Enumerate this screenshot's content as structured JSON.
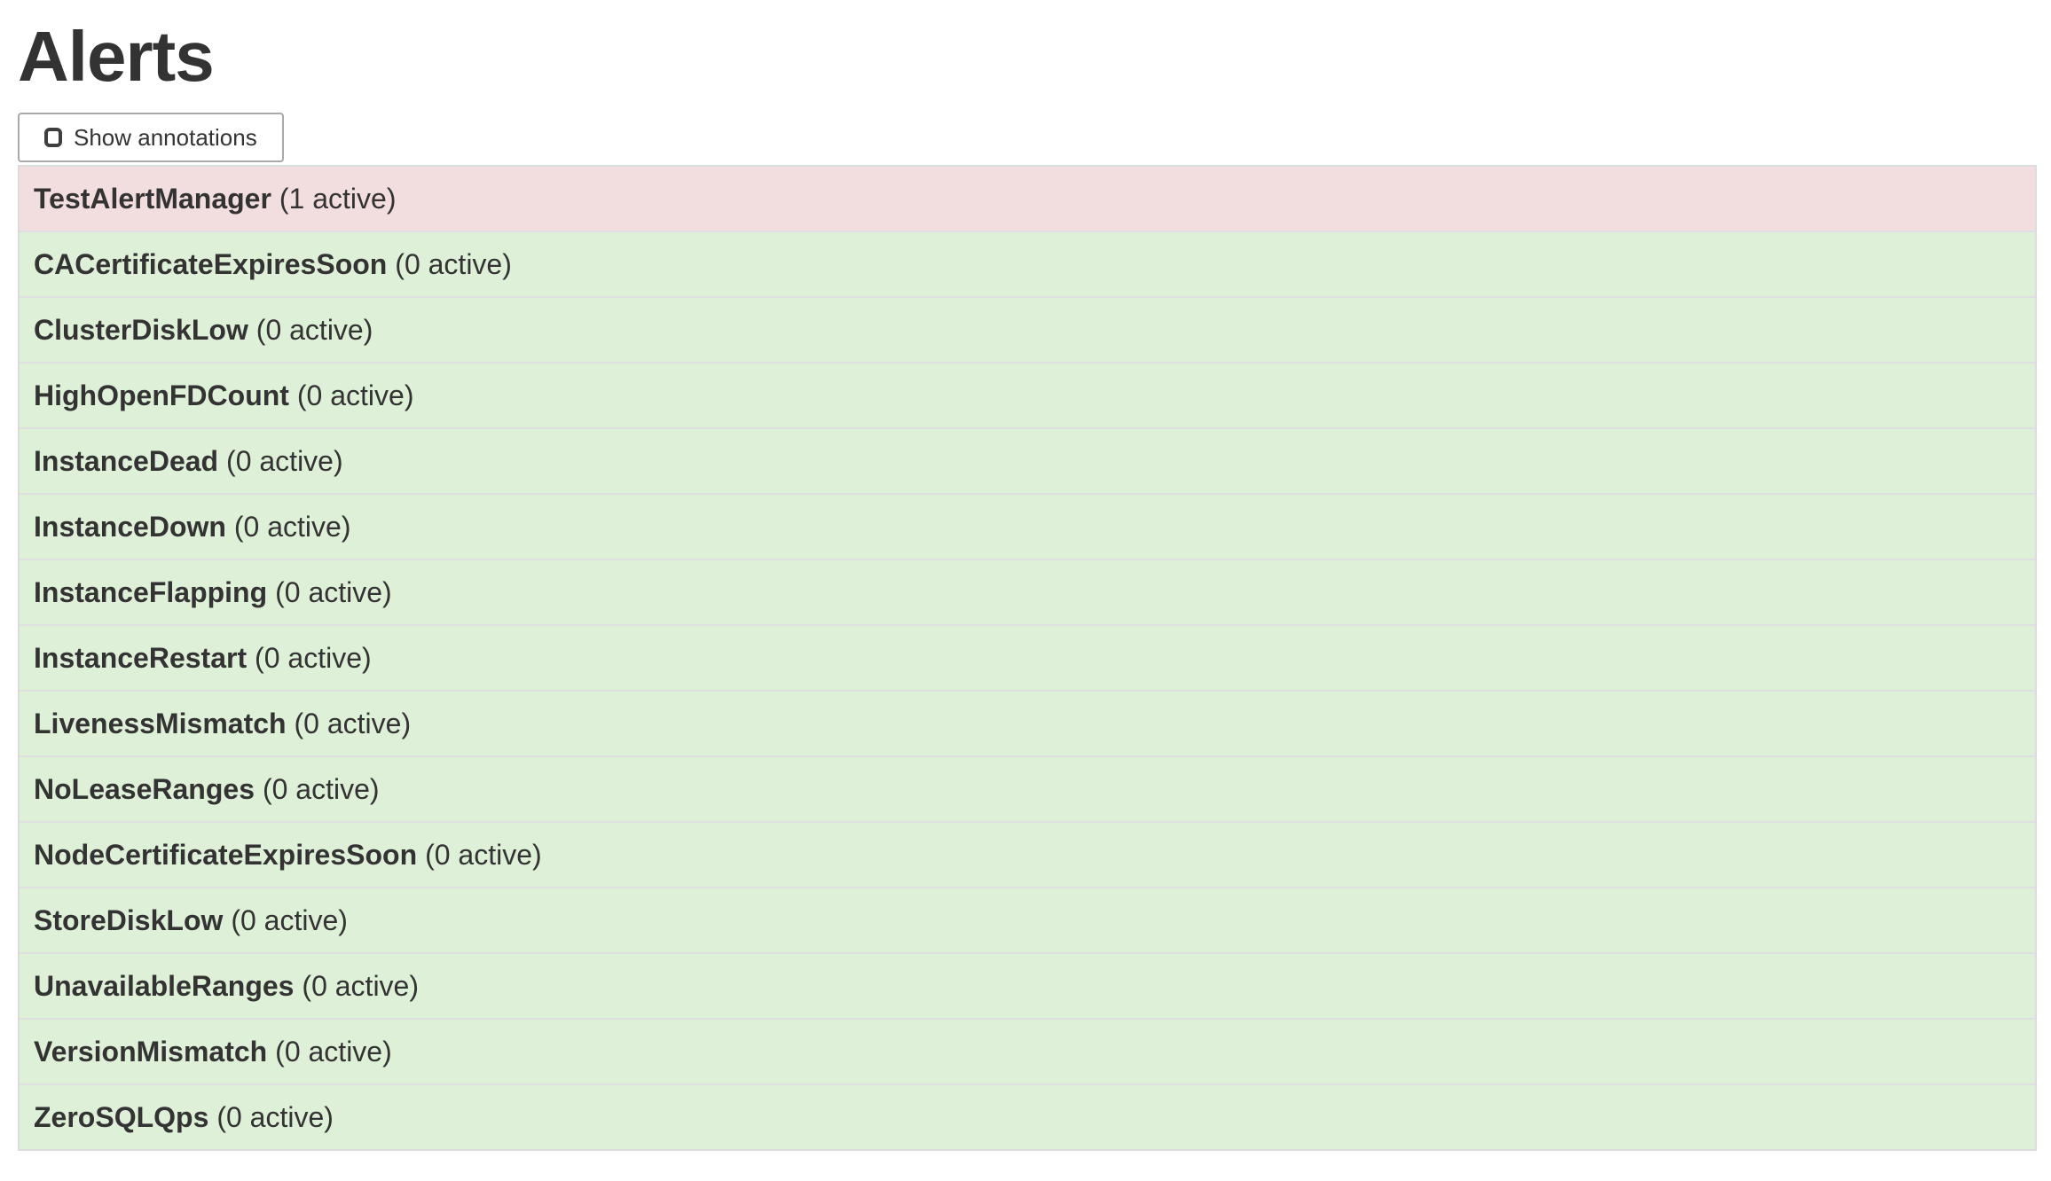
{
  "page": {
    "title": "Alerts"
  },
  "toolbar": {
    "show_annotations_label": "Show annotations",
    "show_annotations_checked": false
  },
  "alerts": [
    {
      "name": "TestAlertManager",
      "active_count": 1,
      "active_label": "(1 active)",
      "state": "firing"
    },
    {
      "name": "CACertificateExpiresSoon",
      "active_count": 0,
      "active_label": "(0 active)",
      "state": "inactive"
    },
    {
      "name": "ClusterDiskLow",
      "active_count": 0,
      "active_label": "(0 active)",
      "state": "inactive"
    },
    {
      "name": "HighOpenFDCount",
      "active_count": 0,
      "active_label": "(0 active)",
      "state": "inactive"
    },
    {
      "name": "InstanceDead",
      "active_count": 0,
      "active_label": "(0 active)",
      "state": "inactive"
    },
    {
      "name": "InstanceDown",
      "active_count": 0,
      "active_label": "(0 active)",
      "state": "inactive"
    },
    {
      "name": "InstanceFlapping",
      "active_count": 0,
      "active_label": "(0 active)",
      "state": "inactive"
    },
    {
      "name": "InstanceRestart",
      "active_count": 0,
      "active_label": "(0 active)",
      "state": "inactive"
    },
    {
      "name": "LivenessMismatch",
      "active_count": 0,
      "active_label": "(0 active)",
      "state": "inactive"
    },
    {
      "name": "NoLeaseRanges",
      "active_count": 0,
      "active_label": "(0 active)",
      "state": "inactive"
    },
    {
      "name": "NodeCertificateExpiresSoon",
      "active_count": 0,
      "active_label": "(0 active)",
      "state": "inactive"
    },
    {
      "name": "StoreDiskLow",
      "active_count": 0,
      "active_label": "(0 active)",
      "state": "inactive"
    },
    {
      "name": "UnavailableRanges",
      "active_count": 0,
      "active_label": "(0 active)",
      "state": "inactive"
    },
    {
      "name": "VersionMismatch",
      "active_count": 0,
      "active_label": "(0 active)",
      "state": "inactive"
    },
    {
      "name": "ZeroSQLQps",
      "active_count": 0,
      "active_label": "(0 active)",
      "state": "inactive"
    }
  ],
  "colors": {
    "firing_row_bg": "#f2dede",
    "inactive_row_bg": "#dff0d8",
    "table_border": "#dcdcdf",
    "row_separator": "#dfdfe2",
    "text": "#333333",
    "button_border": "#a9a9a9",
    "button_bg": "#ffffff",
    "checkbox_border": "#3f3f3f"
  }
}
